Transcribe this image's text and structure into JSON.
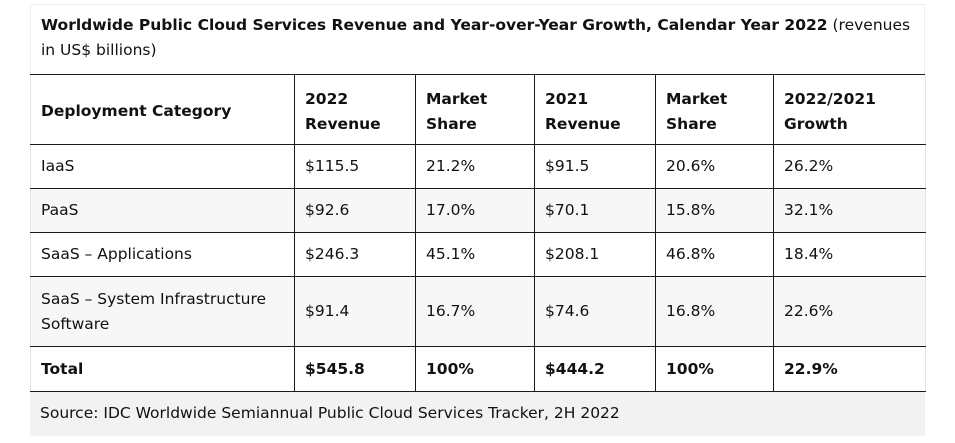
{
  "caption": {
    "title": "Worldwide Public Cloud Services Revenue and Year-over-Year Growth, Calendar Year 2022",
    "note": " (revenues in US$ billions)"
  },
  "table": {
    "headers": [
      "Deployment Category",
      "2022 Revenue",
      "Market Share",
      "2021 Revenue",
      "Market Share",
      "2022/2021 Growth"
    ],
    "rows": [
      [
        "IaaS",
        "$115.5",
        "21.2%",
        "$91.5",
        "20.6%",
        "26.2%"
      ],
      [
        "PaaS",
        "$92.6",
        "17.0%",
        "$70.1",
        "15.8%",
        "32.1%"
      ],
      [
        "SaaS – Applications",
        "$246.3",
        "45.1%",
        "$208.1",
        "46.8%",
        "18.4%"
      ],
      [
        "SaaS – System Infrastructure Software",
        "$91.4",
        "16.7%",
        "$74.6",
        "16.8%",
        "22.6%"
      ]
    ],
    "total": [
      "Total",
      "$545.8",
      "100%",
      "$444.2",
      "100%",
      "22.9%"
    ]
  },
  "source": "Source: IDC Worldwide Semiannual Public Cloud Services Tracker, 2H 2022"
}
